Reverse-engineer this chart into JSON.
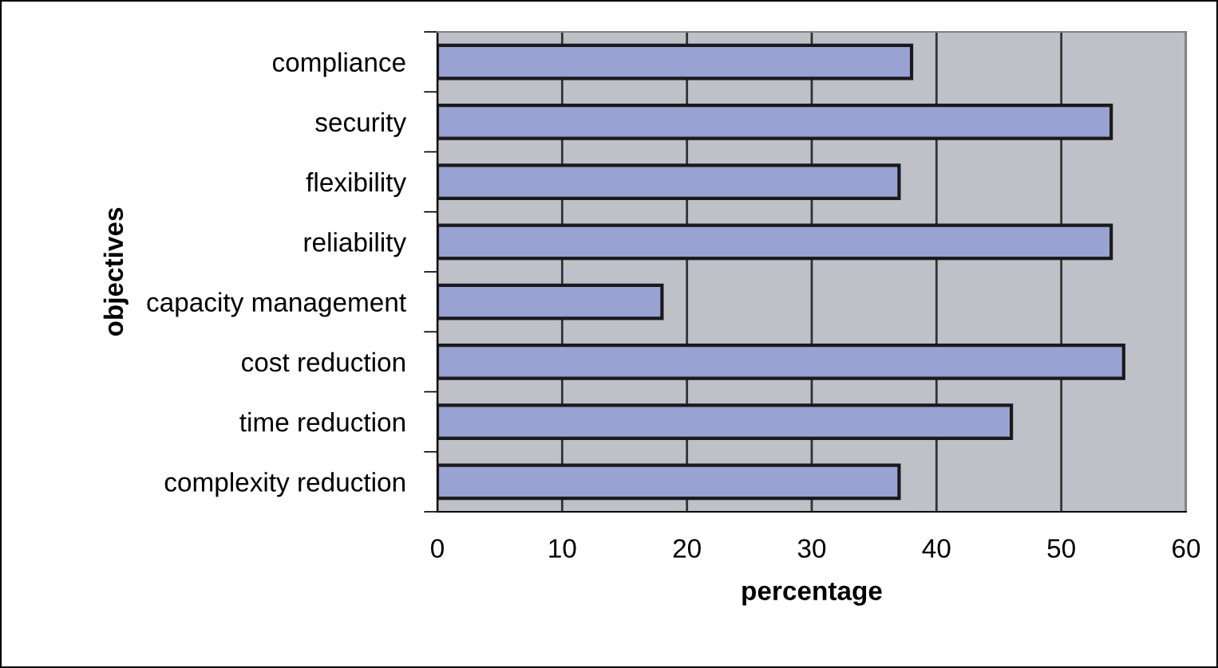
{
  "chart_data": {
    "type": "bar",
    "orientation": "horizontal",
    "xlabel": "percentage",
    "ylabel": "objectives",
    "categories": [
      "compliance",
      "security",
      "flexibility",
      "reliability",
      "capacity management",
      "cost reduction",
      "time reduction",
      "complexity reduction"
    ],
    "values": [
      38,
      54,
      37,
      54,
      18,
      55,
      46,
      37
    ],
    "color": "#99a3d3",
    "xlim": [
      0,
      60
    ],
    "xticks": [
      0,
      10,
      20,
      30,
      40,
      50,
      60
    ],
    "grid": "x"
  }
}
